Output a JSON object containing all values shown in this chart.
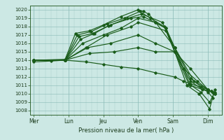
{
  "xlabel": "Pression niveau de la mer( hPa )",
  "bg_color": "#cce8e4",
  "line_color": "#1a5c1a",
  "ylim": [
    1007.5,
    1020.5
  ],
  "yticks": [
    1008,
    1009,
    1010,
    1011,
    1012,
    1013,
    1014,
    1015,
    1016,
    1017,
    1018,
    1019,
    1020
  ],
  "xlim": [
    -0.1,
    5.4
  ],
  "day_positions": [
    0,
    1,
    2,
    3,
    4,
    5
  ],
  "day_labels": [
    "Mer",
    "Lun",
    "Jeu",
    "Ven",
    "Sam",
    "Dim"
  ],
  "series": [
    {
      "x": [
        0.0,
        0.9,
        1.2,
        1.6,
        2.0,
        2.5,
        3.0,
        3.15,
        3.3,
        3.5,
        3.8,
        4.05,
        4.4,
        4.75,
        5.05,
        5.2
      ],
      "y": [
        1014.0,
        1014.1,
        1017.2,
        1017.5,
        1018.2,
        1019.2,
        1020.0,
        1019.8,
        1019.5,
        1018.5,
        1017.8,
        1015.0,
        1011.0,
        1010.0,
        1008.2,
        1010.5
      ]
    },
    {
      "x": [
        0.0,
        0.9,
        1.25,
        1.65,
        2.1,
        2.6,
        3.05,
        3.35,
        3.75,
        4.05,
        4.45,
        4.8,
        5.05,
        5.2
      ],
      "y": [
        1014.0,
        1014.0,
        1017.0,
        1017.4,
        1018.3,
        1019.0,
        1019.8,
        1019.0,
        1018.0,
        1015.0,
        1011.2,
        1010.2,
        1009.0,
        1010.2
      ]
    },
    {
      "x": [
        0.0,
        0.9,
        1.3,
        1.7,
        2.15,
        2.7,
        3.1,
        3.7,
        4.05,
        4.5,
        4.85,
        5.1,
        5.2
      ],
      "y": [
        1014.0,
        1014.0,
        1016.8,
        1017.2,
        1018.1,
        1019.0,
        1019.5,
        1018.5,
        1015.0,
        1011.5,
        1010.5,
        1010.3,
        1010.0
      ]
    },
    {
      "x": [
        0.0,
        0.9,
        1.35,
        1.75,
        2.2,
        2.8,
        3.15,
        3.8,
        4.05,
        4.5,
        5.0,
        5.15
      ],
      "y": [
        1014.0,
        1014.0,
        1016.5,
        1017.2,
        1018.2,
        1019.0,
        1019.2,
        1017.8,
        1015.5,
        1011.8,
        1010.5,
        1010.2
      ]
    },
    {
      "x": [
        0.0,
        0.9,
        1.4,
        2.0,
        2.5,
        3.0,
        3.5,
        4.05,
        4.5,
        5.0
      ],
      "y": [
        1014.0,
        1014.0,
        1016.0,
        1017.0,
        1017.8,
        1019.0,
        1018.5,
        1015.5,
        1011.0,
        1010.3
      ]
    },
    {
      "x": [
        0.0,
        0.9,
        1.5,
        2.1,
        2.8,
        3.0,
        3.8,
        4.05,
        4.6,
        5.0,
        5.15
      ],
      "y": [
        1014.0,
        1014.0,
        1015.5,
        1017.0,
        1018.0,
        1018.5,
        1017.5,
        1015.5,
        1011.5,
        1010.2,
        1009.5
      ]
    },
    {
      "x": [
        0.0,
        0.9,
        1.55,
        2.2,
        3.0,
        3.5,
        4.05,
        4.3,
        4.7,
        5.0,
        5.15
      ],
      "y": [
        1014.0,
        1014.0,
        1015.5,
        1016.0,
        1017.0,
        1016.0,
        1015.0,
        1013.0,
        1011.5,
        1010.5,
        1010.2
      ]
    },
    {
      "x": [
        0.0,
        0.9,
        1.6,
        2.3,
        3.0,
        3.5,
        4.05,
        4.5,
        5.0,
        5.2
      ],
      "y": [
        1014.0,
        1014.0,
        1014.8,
        1015.0,
        1015.5,
        1015.0,
        1015.0,
        1013.0,
        1010.5,
        1010.0
      ]
    },
    {
      "x": [
        0.0,
        0.5,
        0.9,
        1.5,
        2.0,
        2.5,
        3.0,
        3.5,
        4.05,
        4.3,
        4.5,
        4.8,
        5.0,
        5.1,
        5.2
      ],
      "y": [
        1013.8,
        1013.9,
        1014.0,
        1013.8,
        1013.5,
        1013.2,
        1013.0,
        1012.5,
        1012.0,
        1011.5,
        1011.2,
        1010.8,
        1010.5,
        1010.3,
        1010.0
      ]
    }
  ]
}
